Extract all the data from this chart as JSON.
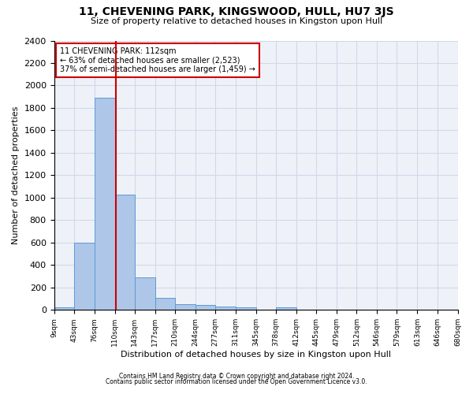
{
  "title": "11, CHEVENING PARK, KINGSWOOD, HULL, HU7 3JS",
  "subtitle": "Size of property relative to detached houses in Kingston upon Hull",
  "xlabel_bottom": "Distribution of detached houses by size in Kingston upon Hull",
  "ylabel": "Number of detached properties",
  "footnote1": "Contains HM Land Registry data © Crown copyright and database right 2024.",
  "footnote2": "Contains public sector information licensed under the Open Government Licence v3.0.",
  "bar_edges": [
    9,
    43,
    76,
    110,
    143,
    177,
    210,
    244,
    277,
    311,
    345,
    378,
    412,
    445,
    479,
    512,
    546,
    579,
    613,
    646,
    680
  ],
  "bar_heights": [
    20,
    600,
    1890,
    1030,
    290,
    110,
    50,
    45,
    30,
    20,
    0,
    20,
    0,
    0,
    0,
    0,
    0,
    0,
    0,
    0
  ],
  "bar_color": "#aec6e8",
  "bar_edge_color": "#5b9bd5",
  "grid_color": "#d0d8e8",
  "background_color": "#eef2f8",
  "vline_x": 112,
  "vline_color": "#cc0000",
  "annotation_line1": "11 CHEVENING PARK: 112sqm",
  "annotation_line2": "← 63% of detached houses are smaller (2,523)",
  "annotation_line3": "37% of semi-detached houses are larger (1,459) →",
  "ylim": [
    0,
    2400
  ],
  "yticks": [
    0,
    200,
    400,
    600,
    800,
    1000,
    1200,
    1400,
    1600,
    1800,
    2000,
    2200,
    2400
  ],
  "tick_labels": [
    "9sqm",
    "43sqm",
    "76sqm",
    "110sqm",
    "143sqm",
    "177sqm",
    "210sqm",
    "244sqm",
    "277sqm",
    "311sqm",
    "345sqm",
    "378sqm",
    "412sqm",
    "445sqm",
    "479sqm",
    "512sqm",
    "546sqm",
    "579sqm",
    "613sqm",
    "646sqm",
    "680sqm"
  ]
}
